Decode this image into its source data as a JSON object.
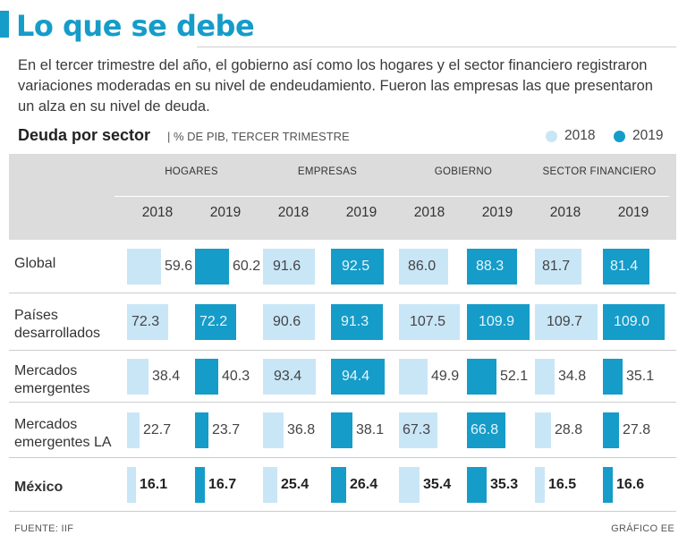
{
  "header": {
    "title": "Lo que se debe",
    "subtitle": "En el tercer trimestre del año, el gobierno así como los hogares y el sector financiero registraron variaciones moderadas en su nivel de endeudamiento. Fueron las empresas las que presentaron un alza en su nivel de deuda."
  },
  "chart_data": {
    "type": "bar",
    "title": "Deuda por sector",
    "unit": "| % DE PIB, TERCER TRIMESTRE",
    "legend": [
      "2018",
      "2019"
    ],
    "groups": [
      "HOGARES",
      "EMPRESAS",
      "GOBIERNO",
      "SECTOR FINANCIERO"
    ],
    "years": [
      "2018",
      "2019"
    ],
    "rows": [
      {
        "label": "Global",
        "values": [
          59.6,
          60.2,
          91.6,
          92.5,
          86.0,
          88.3,
          81.7,
          81.4
        ]
      },
      {
        "label": "Países desarrollados",
        "values": [
          72.3,
          72.2,
          90.6,
          91.3,
          107.5,
          109.9,
          109.7,
          109.0
        ]
      },
      {
        "label": "Mercados emergentes",
        "values": [
          38.4,
          40.3,
          93.4,
          94.4,
          49.9,
          52.1,
          34.8,
          35.1
        ]
      },
      {
        "label": "Mercados emergentes LA",
        "values": [
          22.7,
          23.7,
          36.8,
          38.1,
          67.3,
          66.8,
          28.8,
          27.8
        ]
      },
      {
        "label": "México",
        "values": [
          16.1,
          16.7,
          25.4,
          26.4,
          35.4,
          35.3,
          16.5,
          16.6
        ]
      }
    ],
    "ylim": [
      0,
      110
    ]
  },
  "footer": {
    "source": "FUENTE: IIF",
    "credit": "GRÁFICO EE"
  },
  "colors": {
    "accent": "#159cc9",
    "light": "#c9e6f7",
    "header_bg": "#dcdcdc"
  }
}
